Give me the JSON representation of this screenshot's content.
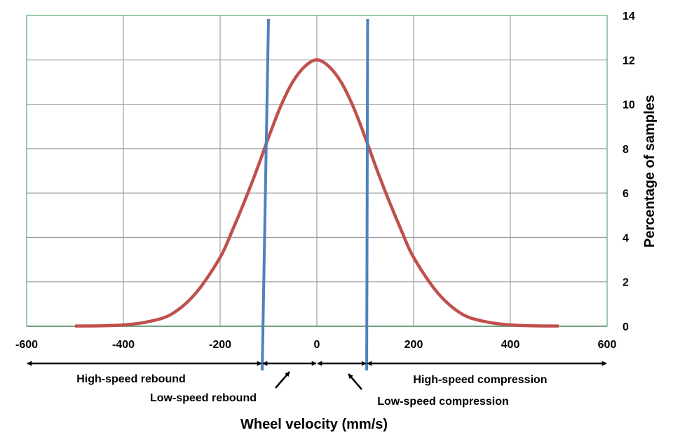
{
  "chart_data": {
    "type": "line",
    "title": "",
    "xlabel": "Wheel velocity (mm/s)",
    "ylabel": "Percentage of samples",
    "xlim": [
      -600,
      600
    ],
    "ylim": [
      0,
      14
    ],
    "x_ticks": [
      -600,
      -400,
      -200,
      0,
      200,
      400,
      600
    ],
    "y_ticks": [
      0,
      2,
      4,
      6,
      8,
      10,
      12,
      14
    ],
    "y_axis_position": "right",
    "grid": true,
    "series": [
      {
        "color": "#c0504d",
        "x": [
          -500,
          -450,
          -400,
          -350,
          -300,
          -250,
          -200,
          -175,
          -150,
          -125,
          -100,
          -75,
          -50,
          -25,
          0,
          25,
          50,
          75,
          100,
          125,
          150,
          175,
          200,
          250,
          300,
          350,
          400,
          450,
          500
        ],
        "y": [
          0.01,
          0.02,
          0.06,
          0.2,
          0.55,
          1.5,
          3.1,
          4.3,
          5.6,
          7.0,
          8.5,
          9.9,
          11.0,
          11.7,
          12.0,
          11.7,
          11.0,
          9.9,
          8.5,
          7.0,
          5.6,
          4.3,
          3.1,
          1.5,
          0.55,
          0.2,
          0.06,
          0.02,
          0.01
        ]
      }
    ],
    "vertical_lines": [
      {
        "color": "#4f81bd",
        "x_top": -100,
        "x_bottom": -113
      },
      {
        "color": "#4f81bd",
        "x_top": 105,
        "x_bottom": 103
      }
    ],
    "regions": [
      {
        "label": "High-speed rebound",
        "from": -600,
        "to": -113
      },
      {
        "label": "Low-speed rebound",
        "from": -113,
        "to": 0
      },
      {
        "label": "Low-speed compression",
        "from": 0,
        "to": 103
      },
      {
        "label": "High-speed compression",
        "from": 103,
        "to": 600
      }
    ]
  }
}
